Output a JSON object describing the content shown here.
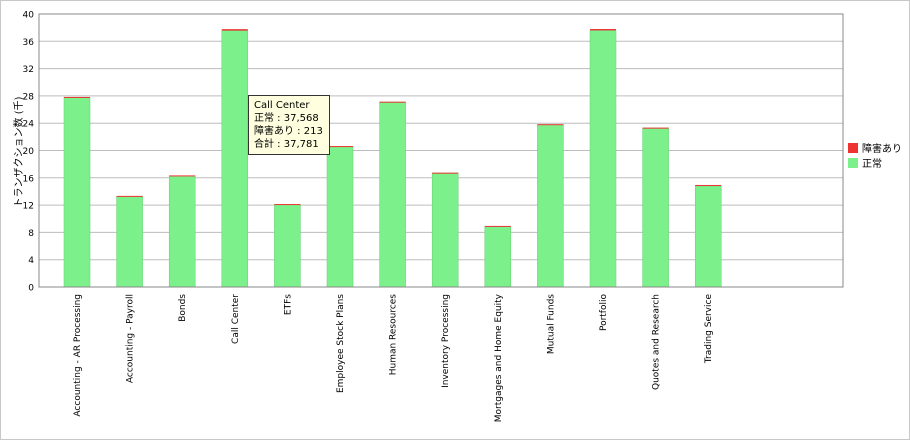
{
  "chart_data": {
    "type": "bar",
    "stacked": true,
    "title": "",
    "xlabel": "",
    "ylabel": "トランザクション数 (千)",
    "ylim": [
      0,
      40
    ],
    "yticks": [
      0,
      4,
      8,
      12,
      16,
      20,
      24,
      28,
      32,
      36,
      40
    ],
    "grid": true,
    "legend_position": "right",
    "categories": [
      "Accounting - AR Processing",
      "Accounting - Payroll",
      "Bonds",
      "Call Center",
      "ETFs",
      "Employee Stock Plans",
      "Human Resources",
      "Inventory Processing",
      "Mortgages and Home Equity",
      "Mutual Funds",
      "Portfolio",
      "Quotes and Research",
      "Trading Service"
    ],
    "series": [
      {
        "name": "正常",
        "color": "#7cf08a",
        "values": [
          27.8,
          13.3,
          16.3,
          37.568,
          12.1,
          20.6,
          27.1,
          16.7,
          8.9,
          23.8,
          37.6,
          23.3,
          14.8
        ]
      },
      {
        "name": "障害あり",
        "color": "#ee3333",
        "values": [
          0.05,
          0.05,
          0.05,
          0.213,
          0.05,
          0.05,
          0.05,
          0.05,
          0.05,
          0.05,
          0.2,
          0.05,
          0.15
        ]
      }
    ],
    "legend": [
      "障害あり",
      "正常"
    ],
    "tooltip": {
      "title": "Call Center",
      "lines": [
        "正常 : 37,568",
        "障害あり : 213",
        "合計 : 37,781"
      ]
    }
  }
}
